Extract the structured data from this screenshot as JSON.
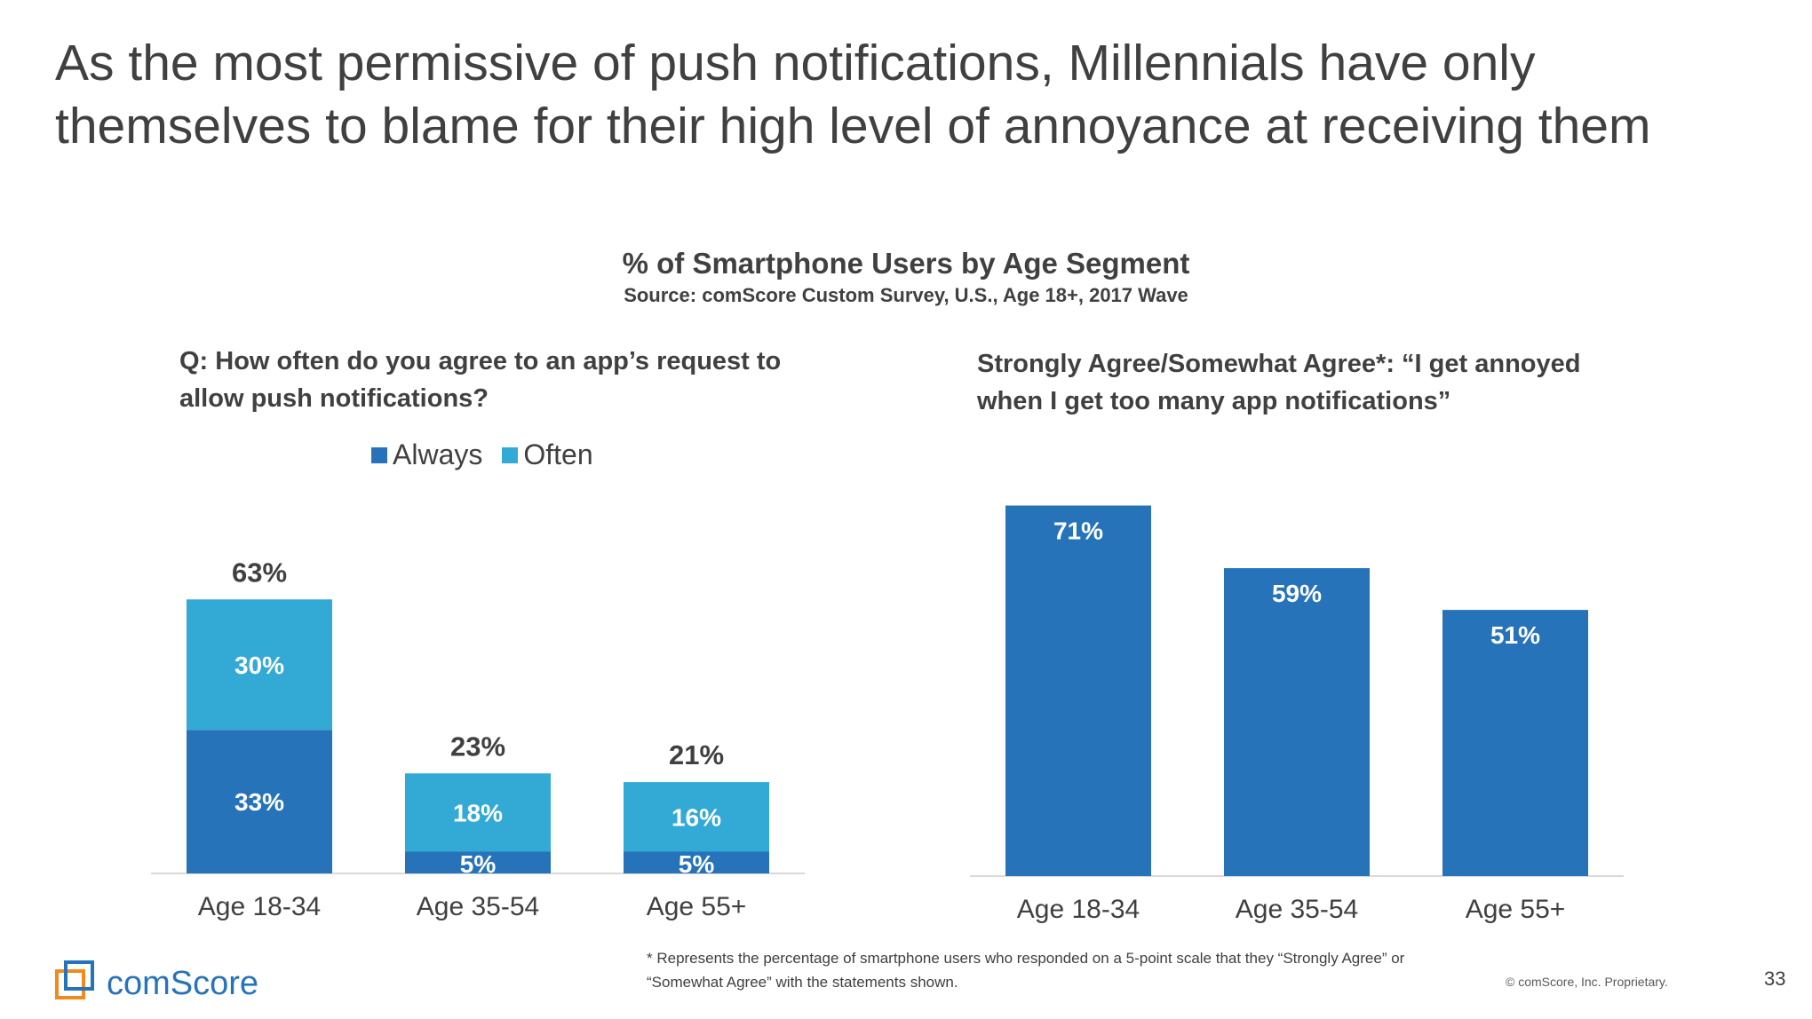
{
  "slide": {
    "title": "As the most permissive of push notifications, Millennials have only themselves to blame for their high level of annoyance at receiving them",
    "chart_title": "% of Smartphone Users by Age Segment",
    "source": "Source: comScore Custom Survey, U.S., Age 18+, 2017 Wave",
    "footnote": "* Represents the percentage of smartphone users who responded on a 5-point scale that they “Strongly Agree” or “Somewhat Agree” with the statements shown.",
    "copyright": "© comScore, Inc. Proprietary.",
    "page_number": "33",
    "logo_text": "comScore"
  },
  "colors": {
    "always": "#2673BA",
    "often": "#33A9D6",
    "axis": "#D9D9D9",
    "text": "#404040"
  },
  "chart_data": [
    {
      "type": "bar",
      "stacked": true,
      "title": "Q: How often do you agree to an app’s request to allow push notifications?",
      "categories": [
        "Age 18-34",
        "Age 35-54",
        "Age 55+"
      ],
      "series": [
        {
          "name": "Always",
          "values": [
            33,
            5,
            5
          ],
          "labels": [
            "33%",
            "5%",
            "5%"
          ]
        },
        {
          "name": "Often",
          "values": [
            30,
            18,
            16
          ],
          "labels": [
            "30%",
            "18%",
            "16%"
          ]
        }
      ],
      "totals": [
        63,
        23,
        21
      ],
      "total_labels": [
        "63%",
        "23%",
        "21%"
      ],
      "legend": [
        "Always",
        "Often"
      ],
      "ylim": [
        0,
        70
      ]
    },
    {
      "type": "bar",
      "title": "Strongly Agree/Somewhat Agree*: “I get annoyed when I get too many app notifications”",
      "categories": [
        "Age 18-34",
        "Age 35-54",
        "Age 55+"
      ],
      "values": [
        71,
        59,
        51
      ],
      "labels": [
        "71%",
        "59%",
        "51%"
      ],
      "ylim": [
        0,
        71
      ]
    }
  ]
}
